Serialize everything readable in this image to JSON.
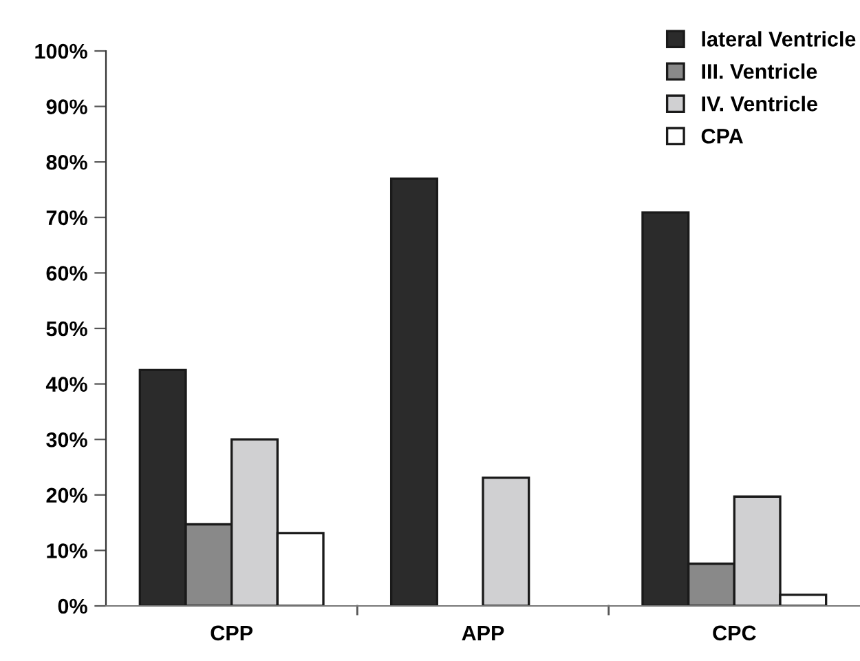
{
  "chart_data": {
    "type": "bar",
    "categories": [
      "CPP",
      "APP",
      "CPC"
    ],
    "series": [
      {
        "name": "lateral Ventricle",
        "color": "#2b2b2b",
        "values": [
          42.5,
          77.0,
          70.9
        ]
      },
      {
        "name": "III. Ventricle",
        "color": "#898989",
        "values": [
          14.7,
          null,
          7.6
        ]
      },
      {
        "name": "IV. Ventricle",
        "color": "#d0d0d2",
        "values": [
          30.0,
          23.1,
          19.7
        ]
      },
      {
        "name": "CPA",
        "color": "#ffffff",
        "values": [
          13.1,
          null,
          2.0
        ]
      }
    ],
    "ylim": [
      0,
      100
    ],
    "yticks": [
      {
        "value": 0,
        "label": "0%"
      },
      {
        "value": 10,
        "label": "10%"
      },
      {
        "value": 20,
        "label": "20%"
      },
      {
        "value": 30,
        "label": "30%"
      },
      {
        "value": 40,
        "label": "40%"
      },
      {
        "value": 50,
        "label": "50%"
      },
      {
        "value": 60,
        "label": "60%"
      },
      {
        "value": 70,
        "label": "70%"
      },
      {
        "value": 80,
        "label": "80%"
      },
      {
        "value": 90,
        "label": "90%"
      },
      {
        "value": 100,
        "label": "100%"
      }
    ],
    "grid": false,
    "legend": "top right"
  }
}
